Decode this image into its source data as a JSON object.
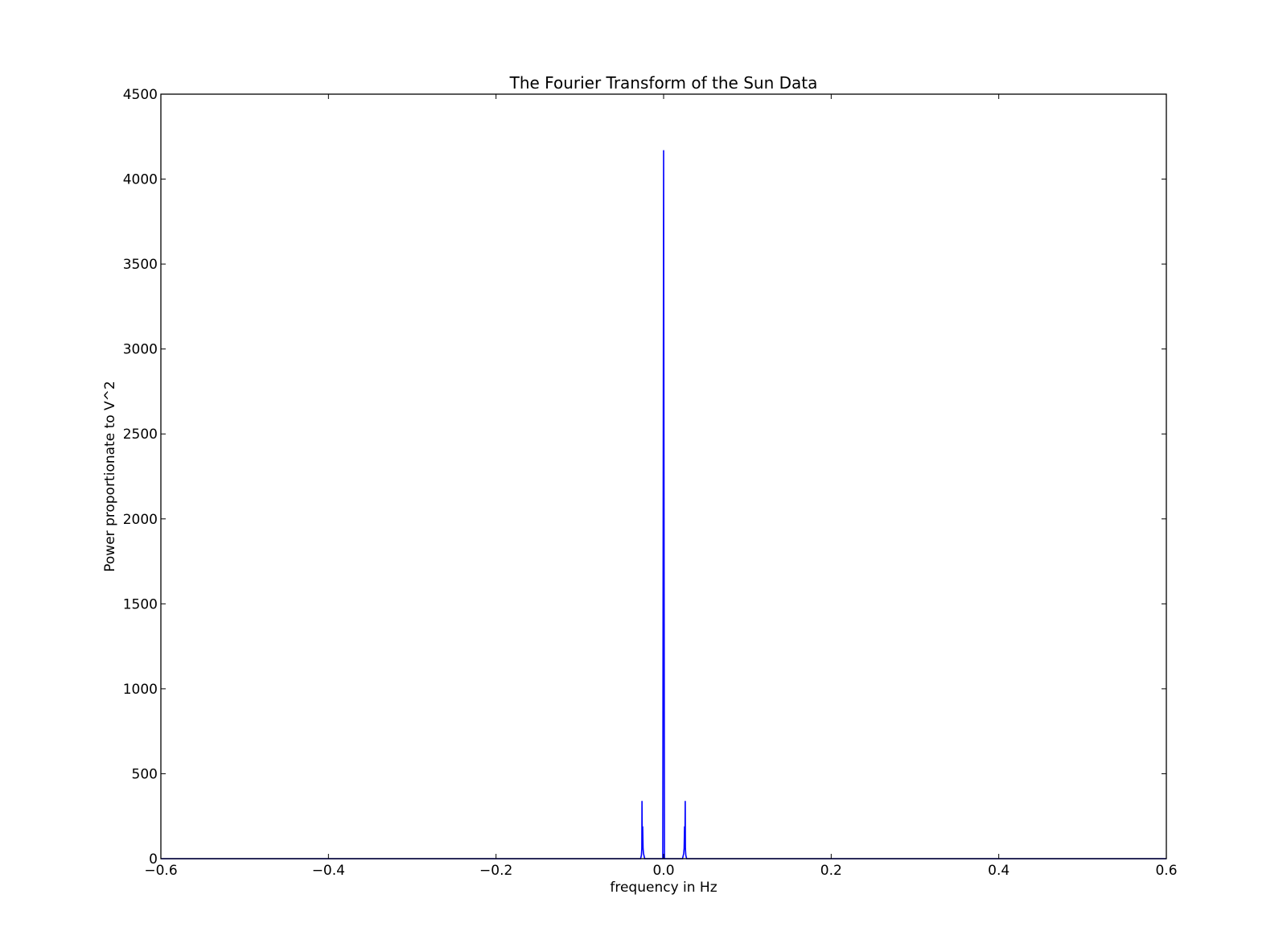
{
  "chart_data": {
    "type": "line",
    "title": "The Fourier Transform of the Sun Data",
    "xlabel": "frequency in Hz",
    "ylabel": "Power proportionate to V^2",
    "xlim": [
      -0.6,
      0.6
    ],
    "ylim": [
      0,
      4500
    ],
    "xticks": [
      -0.6,
      -0.4,
      -0.2,
      0.0,
      0.2,
      0.4,
      0.6
    ],
    "xtick_labels": [
      "−0.6",
      "−0.4",
      "−0.2",
      "0.0",
      "0.2",
      "0.4",
      "0.6"
    ],
    "yticks": [
      0,
      500,
      1000,
      1500,
      2000,
      2500,
      3000,
      3500,
      4000,
      4500
    ],
    "ytick_labels": [
      "0",
      "500",
      "1000",
      "1500",
      "2000",
      "2500",
      "3000",
      "3500",
      "4000",
      "4500"
    ],
    "grid": false,
    "series": [
      {
        "color": "#0000ff",
        "x": [
          -0.6,
          -0.0275,
          -0.0265,
          -0.026,
          -0.0258,
          -0.0255,
          -0.025,
          -0.0245,
          -0.024,
          -0.023,
          -0.0225,
          -0.001,
          0.0,
          0.001,
          0.0225,
          0.023,
          0.024,
          0.0245,
          0.025,
          0.0255,
          0.0258,
          0.026,
          0.0265,
          0.0275,
          0.6
        ],
        "y": [
          0,
          0,
          20,
          60,
          340,
          120,
          190,
          60,
          30,
          10,
          0,
          0,
          4170,
          0,
          0,
          10,
          30,
          60,
          190,
          120,
          340,
          60,
          20,
          0,
          0
        ]
      }
    ]
  }
}
